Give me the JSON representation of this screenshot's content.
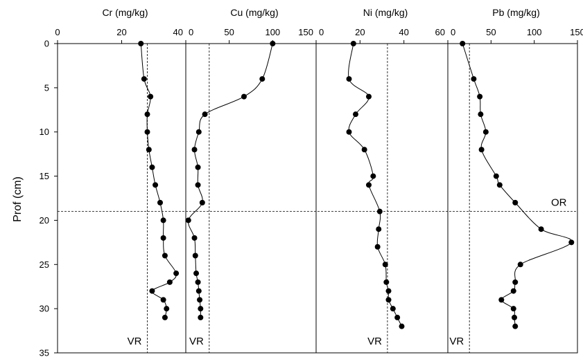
{
  "chart_data": {
    "type": "scatter",
    "ylabel": "Prof (cm)",
    "ylim": [
      0,
      35
    ],
    "y_reversed": true,
    "y_ticks": [
      0,
      5,
      10,
      15,
      20,
      25,
      30,
      35
    ],
    "grid": false,
    "line_color": "#000000",
    "marker_color": "#000000",
    "or_line": {
      "depth": 19,
      "label": "OR"
    },
    "panels": [
      {
        "title": "Cr (mg/kg)",
        "xlim": [
          0,
          40
        ],
        "x_ticks": [
          0,
          20,
          40
        ],
        "vr": {
          "value": 28,
          "label": "VR"
        },
        "points": [
          {
            "x": 26,
            "y": 0
          },
          {
            "x": 27,
            "y": 4
          },
          {
            "x": 29,
            "y": 6
          },
          {
            "x": 28,
            "y": 8
          },
          {
            "x": 28,
            "y": 10
          },
          {
            "x": 28.5,
            "y": 12
          },
          {
            "x": 29.5,
            "y": 14
          },
          {
            "x": 30.5,
            "y": 16
          },
          {
            "x": 32,
            "y": 18
          },
          {
            "x": 33,
            "y": 20
          },
          {
            "x": 33,
            "y": 22
          },
          {
            "x": 33.5,
            "y": 24
          },
          {
            "x": 37,
            "y": 26
          },
          {
            "x": 35,
            "y": 27
          },
          {
            "x": 29.5,
            "y": 28
          },
          {
            "x": 33,
            "y": 29
          },
          {
            "x": 34,
            "y": 30
          },
          {
            "x": 33.5,
            "y": 31
          }
        ]
      },
      {
        "title": "Cu (mg/kg)",
        "xlim": [
          0,
          150
        ],
        "x_ticks": [
          0,
          50,
          100,
          150
        ],
        "vr": {
          "value": 27,
          "label": "VR"
        },
        "points": [
          {
            "x": 100,
            "y": 0
          },
          {
            "x": 88,
            "y": 4
          },
          {
            "x": 67,
            "y": 6
          },
          {
            "x": 22,
            "y": 8
          },
          {
            "x": 15,
            "y": 10
          },
          {
            "x": 10,
            "y": 12
          },
          {
            "x": 14,
            "y": 14
          },
          {
            "x": 14,
            "y": 16
          },
          {
            "x": 19,
            "y": 18
          },
          {
            "x": 3,
            "y": 20
          },
          {
            "x": 10,
            "y": 22
          },
          {
            "x": 11,
            "y": 24
          },
          {
            "x": 12,
            "y": 26
          },
          {
            "x": 14,
            "y": 27
          },
          {
            "x": 15,
            "y": 28
          },
          {
            "x": 16,
            "y": 29
          },
          {
            "x": 17,
            "y": 30
          },
          {
            "x": 17,
            "y": 31
          }
        ]
      },
      {
        "title": "Ni (mg/kg)",
        "xlim": [
          0,
          60
        ],
        "x_ticks": [
          0,
          20,
          40,
          60
        ],
        "vr": {
          "value": 32.5,
          "label": "VR"
        },
        "points": [
          {
            "x": 17,
            "y": 0
          },
          {
            "x": 15,
            "y": 4
          },
          {
            "x": 24,
            "y": 6
          },
          {
            "x": 18,
            "y": 8
          },
          {
            "x": 15,
            "y": 10
          },
          {
            "x": 22,
            "y": 12
          },
          {
            "x": 26,
            "y": 15
          },
          {
            "x": 24,
            "y": 16
          },
          {
            "x": 29,
            "y": 19
          },
          {
            "x": 28.5,
            "y": 21
          },
          {
            "x": 28,
            "y": 23
          },
          {
            "x": 31.5,
            "y": 25
          },
          {
            "x": 32,
            "y": 27
          },
          {
            "x": 33,
            "y": 28
          },
          {
            "x": 33,
            "y": 29
          },
          {
            "x": 35,
            "y": 30
          },
          {
            "x": 37,
            "y": 31
          },
          {
            "x": 39,
            "y": 32
          }
        ]
      },
      {
        "title": "Pb (mg/kg)",
        "xlim": [
          0,
          150
        ],
        "x_ticks": [
          0,
          50,
          100,
          150
        ],
        "vr": {
          "value": 25,
          "label": "VR"
        },
        "points": [
          {
            "x": 17,
            "y": 0
          },
          {
            "x": 30,
            "y": 4
          },
          {
            "x": 37,
            "y": 6
          },
          {
            "x": 38,
            "y": 8
          },
          {
            "x": 44,
            "y": 10
          },
          {
            "x": 39,
            "y": 12
          },
          {
            "x": 56,
            "y": 15
          },
          {
            "x": 60,
            "y": 16
          },
          {
            "x": 78,
            "y": 18
          },
          {
            "x": 108,
            "y": 21
          },
          {
            "x": 143,
            "y": 22.5
          },
          {
            "x": 84,
            "y": 25
          },
          {
            "x": 78,
            "y": 27
          },
          {
            "x": 76,
            "y": 28
          },
          {
            "x": 62,
            "y": 29
          },
          {
            "x": 76,
            "y": 30
          },
          {
            "x": 77,
            "y": 31
          },
          {
            "x": 78,
            "y": 32
          }
        ]
      }
    ]
  }
}
